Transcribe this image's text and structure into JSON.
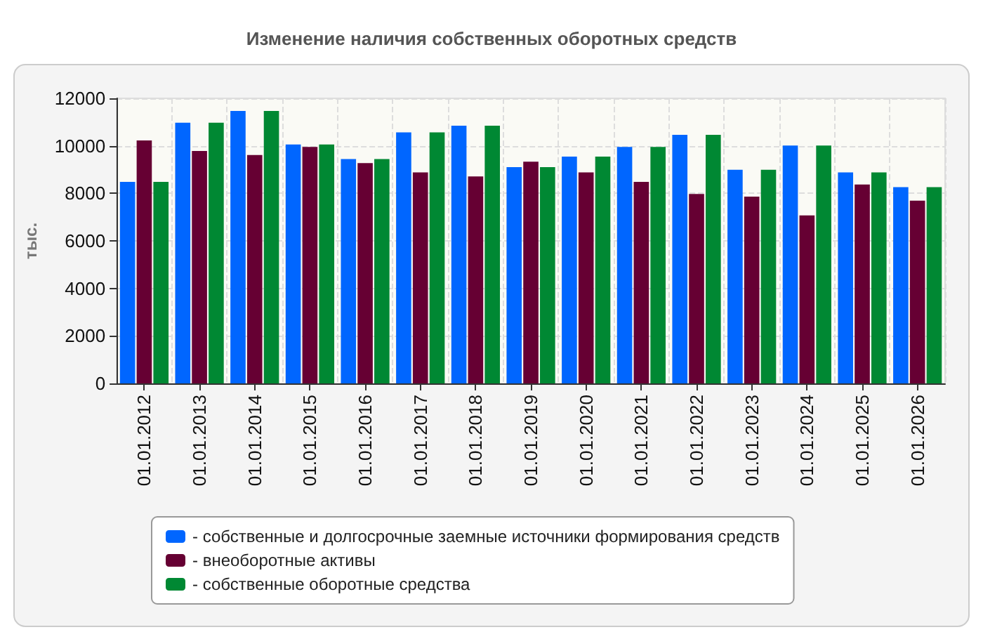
{
  "chart_data": {
    "type": "bar",
    "title": "Изменение наличия собственных оборотных средств",
    "ylabel": "тыс.",
    "categories": [
      "01.01.2012",
      "01.01.2013",
      "01.01.2014",
      "01.01.2015",
      "01.01.2016",
      "01.01.2017",
      "01.01.2018",
      "01.01.2019",
      "01.01.2020",
      "01.01.2021",
      "01.01.2022",
      "01.01.2023",
      "01.01.2024",
      "01.01.2025",
      "01.01.2026"
    ],
    "series": [
      {
        "name": "- собственные и долгосрочные заемные источники формирования средств",
        "color": "#0066ff",
        "values": [
          8480,
          10970,
          11470,
          10060,
          9440,
          10570,
          10850,
          9100,
          9550,
          9950,
          10460,
          8990,
          10010,
          8880,
          8260
        ]
      },
      {
        "name": "- внеоборотные активы",
        "color": "#660033",
        "values": [
          10230,
          9780,
          9610,
          9950,
          9270,
          8880,
          8710,
          9330,
          8880,
          8480,
          7970,
          7860,
          7070,
          8370,
          7690
        ]
      },
      {
        "name": "- собственные оборотные средства",
        "color": "#008833",
        "values": [
          8480,
          10970,
          11470,
          10060,
          9440,
          10570,
          10850,
          9100,
          9550,
          9950,
          10460,
          8990,
          10010,
          8880,
          8260
        ]
      }
    ],
    "ylim": [
      0,
      12000
    ],
    "yticks": [
      0,
      2000,
      4000,
      6000,
      8000,
      10000,
      12000
    ],
    "grid": true,
    "legend": "bottom left"
  }
}
